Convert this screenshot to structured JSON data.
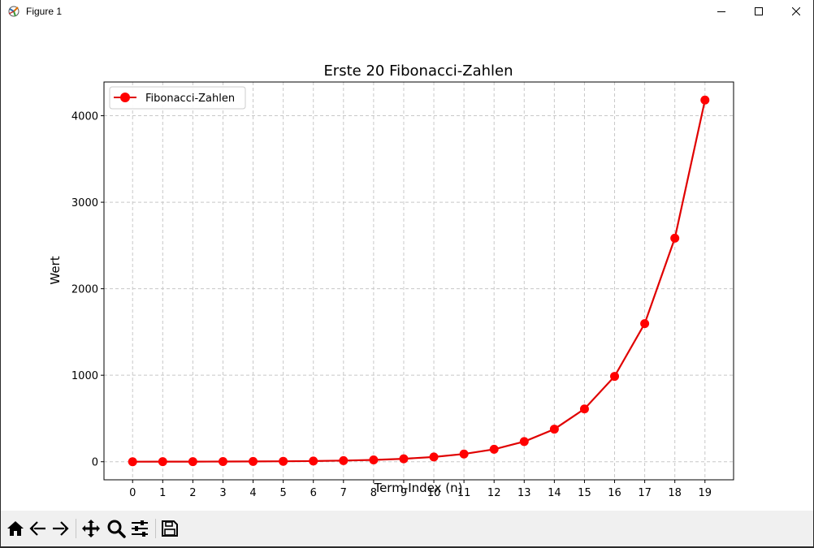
{
  "window": {
    "title": "Figure 1",
    "controls": {
      "minimize": "minimize",
      "maximize": "maximize",
      "close": "close"
    }
  },
  "toolbar": {
    "buttons": [
      {
        "name": "home-button",
        "icon": "home-icon"
      },
      {
        "name": "back-button",
        "icon": "arrow-left-icon"
      },
      {
        "name": "forward-button",
        "icon": "arrow-right-icon"
      },
      {
        "name": "pan-button",
        "icon": "move-icon"
      },
      {
        "name": "zoom-button",
        "icon": "magnifier-icon"
      },
      {
        "name": "configure-subplots-button",
        "icon": "sliders-icon"
      },
      {
        "name": "save-button",
        "icon": "floppy-disk-icon"
      }
    ]
  },
  "chart_data": {
    "type": "line",
    "title": "Erste 20 Fibonacci-Zahlen",
    "xlabel": "Term-Index (n)",
    "ylabel": "Wert",
    "x": [
      0,
      1,
      2,
      3,
      4,
      5,
      6,
      7,
      8,
      9,
      10,
      11,
      12,
      13,
      14,
      15,
      16,
      17,
      18,
      19
    ],
    "series": [
      {
        "name": "Fibonacci-Zahlen",
        "values": [
          0,
          1,
          1,
          2,
          3,
          5,
          8,
          13,
          21,
          34,
          55,
          89,
          144,
          233,
          377,
          610,
          987,
          1597,
          2584,
          4181
        ],
        "color": "#ff0000",
        "line_color": "#e00000",
        "marker": "circle"
      }
    ],
    "xticks": [
      "0",
      "1",
      "2",
      "3",
      "4",
      "5",
      "6",
      "7",
      "8",
      "9",
      "10",
      "11",
      "12",
      "13",
      "14",
      "15",
      "16",
      "17",
      "18",
      "19"
    ],
    "yticks": [
      {
        "value": 0,
        "label": "0"
      },
      {
        "value": 1000,
        "label": "1000"
      },
      {
        "value": 2000,
        "label": "2000"
      },
      {
        "value": 3000,
        "label": "3000"
      },
      {
        "value": 4000,
        "label": "4000"
      }
    ],
    "xlim": [
      -0.95,
      19.95
    ],
    "ylim": [
      -209,
      4390
    ],
    "grid": true,
    "legend": "upper-left"
  }
}
